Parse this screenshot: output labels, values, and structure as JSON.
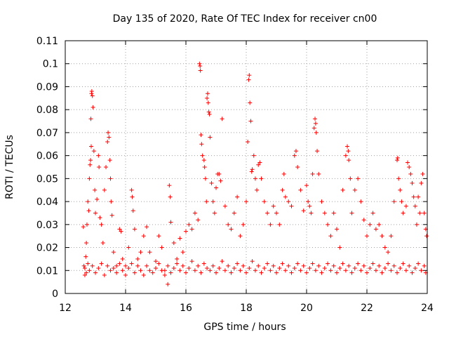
{
  "chart_data": {
    "type": "scatter",
    "title": "Day 135 of 2020, Rate Of TEC Index for receiver cn00",
    "xlabel": "GPS time / hours",
    "ylabel": "ROTI / TECUs",
    "xlim": [
      12,
      24
    ],
    "ylim": [
      0,
      0.11
    ],
    "xticks": [
      "12",
      "14",
      "16",
      "18",
      "20",
      "22",
      "24"
    ],
    "yticks": [
      "0",
      "0.01",
      "0.02",
      "0.03",
      "0.04",
      "0.05",
      "0.06",
      "0.07",
      "0.08",
      "0.09",
      "0.1",
      "0.11"
    ],
    "grid": true,
    "marker": "+",
    "color": "#ff0000",
    "series": [
      {
        "name": "ROTI",
        "points": [
          [
            12.6,
            0.029
          ],
          [
            12.62,
            0.012
          ],
          [
            12.65,
            0.008
          ],
          [
            12.68,
            0.016
          ],
          [
            12.7,
            0.022
          ],
          [
            12.72,
            0.03
          ],
          [
            12.75,
            0.04
          ],
          [
            12.78,
            0.036
          ],
          [
            12.8,
            0.05
          ],
          [
            12.82,
            0.056
          ],
          [
            12.84,
            0.058
          ],
          [
            12.86,
            0.064
          ],
          [
            12.87,
            0.087
          ],
          [
            12.88,
            0.088
          ],
          [
            12.9,
            0.086
          ],
          [
            12.92,
            0.081
          ],
          [
            12.85,
            0.076
          ],
          [
            12.95,
            0.062
          ],
          [
            12.98,
            0.045
          ],
          [
            13.0,
            0.035
          ],
          [
            13.05,
            0.041
          ],
          [
            13.1,
            0.06
          ],
          [
            13.12,
            0.055
          ],
          [
            13.15,
            0.033
          ],
          [
            13.2,
            0.03
          ],
          [
            13.25,
            0.022
          ],
          [
            13.3,
            0.045
          ],
          [
            13.35,
            0.055
          ],
          [
            13.4,
            0.066
          ],
          [
            13.42,
            0.07
          ],
          [
            13.45,
            0.068
          ],
          [
            13.48,
            0.058
          ],
          [
            13.5,
            0.05
          ],
          [
            13.52,
            0.04
          ],
          [
            13.55,
            0.034
          ],
          [
            13.6,
            0.018
          ],
          [
            13.7,
            0.012
          ],
          [
            13.8,
            0.028
          ],
          [
            13.85,
            0.027
          ],
          [
            13.9,
            0.015
          ],
          [
            14.0,
            0.012
          ],
          [
            14.1,
            0.02
          ],
          [
            14.2,
            0.045
          ],
          [
            14.22,
            0.042
          ],
          [
            14.25,
            0.036
          ],
          [
            14.3,
            0.028
          ],
          [
            14.4,
            0.015
          ],
          [
            14.5,
            0.018
          ],
          [
            14.6,
            0.025
          ],
          [
            14.7,
            0.029
          ],
          [
            14.8,
            0.018
          ],
          [
            15.0,
            0.014
          ],
          [
            15.1,
            0.025
          ],
          [
            15.2,
            0.02
          ],
          [
            15.3,
            0.01
          ],
          [
            15.4,
            0.004
          ],
          [
            15.45,
            0.047
          ],
          [
            15.48,
            0.042
          ],
          [
            15.5,
            0.031
          ],
          [
            15.6,
            0.022
          ],
          [
            15.7,
            0.015
          ],
          [
            15.8,
            0.024
          ],
          [
            15.9,
            0.018
          ],
          [
            16.0,
            0.027
          ],
          [
            16.1,
            0.03
          ],
          [
            16.2,
            0.028
          ],
          [
            16.3,
            0.035
          ],
          [
            16.4,
            0.032
          ],
          [
            16.45,
            0.1
          ],
          [
            16.47,
            0.099
          ],
          [
            16.48,
            0.097
          ],
          [
            16.5,
            0.069
          ],
          [
            16.52,
            0.065
          ],
          [
            16.55,
            0.06
          ],
          [
            16.6,
            0.058
          ],
          [
            16.62,
            0.055
          ],
          [
            16.65,
            0.05
          ],
          [
            16.68,
            0.04
          ],
          [
            16.7,
            0.085
          ],
          [
            16.72,
            0.087
          ],
          [
            16.74,
            0.083
          ],
          [
            16.76,
            0.079
          ],
          [
            16.78,
            0.078
          ],
          [
            16.8,
            0.068
          ],
          [
            16.85,
            0.048
          ],
          [
            16.9,
            0.04
          ],
          [
            16.95,
            0.035
          ],
          [
            17.0,
            0.046
          ],
          [
            17.05,
            0.052
          ],
          [
            17.1,
            0.052
          ],
          [
            17.15,
            0.049
          ],
          [
            17.2,
            0.076
          ],
          [
            17.3,
            0.038
          ],
          [
            17.4,
            0.03
          ],
          [
            17.5,
            0.028
          ],
          [
            17.6,
            0.035
          ],
          [
            17.7,
            0.042
          ],
          [
            17.8,
            0.025
          ],
          [
            17.9,
            0.03
          ],
          [
            18.0,
            0.04
          ],
          [
            18.05,
            0.066
          ],
          [
            18.08,
            0.093
          ],
          [
            18.1,
            0.095
          ],
          [
            18.12,
            0.083
          ],
          [
            18.15,
            0.075
          ],
          [
            18.18,
            0.053
          ],
          [
            18.2,
            0.054
          ],
          [
            18.25,
            0.06
          ],
          [
            18.3,
            0.05
          ],
          [
            18.35,
            0.045
          ],
          [
            18.4,
            0.056
          ],
          [
            18.45,
            0.057
          ],
          [
            18.5,
            0.05
          ],
          [
            18.6,
            0.04
          ],
          [
            18.7,
            0.035
          ],
          [
            18.8,
            0.03
          ],
          [
            18.9,
            0.038
          ],
          [
            19.0,
            0.035
          ],
          [
            19.1,
            0.03
          ],
          [
            19.2,
            0.045
          ],
          [
            19.25,
            0.052
          ],
          [
            19.3,
            0.042
          ],
          [
            19.4,
            0.04
          ],
          [
            19.5,
            0.038
          ],
          [
            19.6,
            0.06
          ],
          [
            19.65,
            0.062
          ],
          [
            19.7,
            0.055
          ],
          [
            19.8,
            0.045
          ],
          [
            19.9,
            0.036
          ],
          [
            20.0,
            0.047
          ],
          [
            20.05,
            0.04
          ],
          [
            20.1,
            0.038
          ],
          [
            20.15,
            0.035
          ],
          [
            20.2,
            0.052
          ],
          [
            20.25,
            0.072
          ],
          [
            20.28,
            0.076
          ],
          [
            20.3,
            0.074
          ],
          [
            20.32,
            0.07
          ],
          [
            20.35,
            0.062
          ],
          [
            20.4,
            0.052
          ],
          [
            20.5,
            0.04
          ],
          [
            20.6,
            0.035
          ],
          [
            20.7,
            0.03
          ],
          [
            20.8,
            0.025
          ],
          [
            20.9,
            0.035
          ],
          [
            21.0,
            0.028
          ],
          [
            21.1,
            0.02
          ],
          [
            21.2,
            0.045
          ],
          [
            21.3,
            0.06
          ],
          [
            21.35,
            0.064
          ],
          [
            21.38,
            0.062
          ],
          [
            21.4,
            0.058
          ],
          [
            21.45,
            0.05
          ],
          [
            21.5,
            0.035
          ],
          [
            21.6,
            0.045
          ],
          [
            21.7,
            0.05
          ],
          [
            21.8,
            0.04
          ],
          [
            21.9,
            0.032
          ],
          [
            22.0,
            0.025
          ],
          [
            22.1,
            0.03
          ],
          [
            22.2,
            0.035
          ],
          [
            22.3,
            0.028
          ],
          [
            22.4,
            0.03
          ],
          [
            22.5,
            0.025
          ],
          [
            22.6,
            0.02
          ],
          [
            22.7,
            0.018
          ],
          [
            22.8,
            0.025
          ],
          [
            22.9,
            0.04
          ],
          [
            23.0,
            0.058
          ],
          [
            23.02,
            0.059
          ],
          [
            23.05,
            0.05
          ],
          [
            23.1,
            0.045
          ],
          [
            23.15,
            0.04
          ],
          [
            23.2,
            0.035
          ],
          [
            23.3,
            0.038
          ],
          [
            23.35,
            0.057
          ],
          [
            23.4,
            0.055
          ],
          [
            23.45,
            0.052
          ],
          [
            23.5,
            0.048
          ],
          [
            23.55,
            0.042
          ],
          [
            23.6,
            0.038
          ],
          [
            23.65,
            0.03
          ],
          [
            23.7,
            0.042
          ],
          [
            23.75,
            0.035
          ],
          [
            23.8,
            0.048
          ],
          [
            23.85,
            0.052
          ],
          [
            23.9,
            0.035
          ],
          [
            23.95,
            0.028
          ],
          [
            23.98,
            0.025
          ],
          [
            12.65,
            0.011
          ],
          [
            12.7,
            0.009
          ],
          [
            12.75,
            0.013
          ],
          [
            12.8,
            0.01
          ],
          [
            12.9,
            0.012
          ],
          [
            13.0,
            0.009
          ],
          [
            13.1,
            0.011
          ],
          [
            13.2,
            0.013
          ],
          [
            13.3,
            0.008
          ],
          [
            13.4,
            0.012
          ],
          [
            13.5,
            0.01
          ],
          [
            13.6,
            0.011
          ],
          [
            13.7,
            0.009
          ],
          [
            13.8,
            0.013
          ],
          [
            13.9,
            0.01
          ],
          [
            14.0,
            0.008
          ],
          [
            14.1,
            0.011
          ],
          [
            14.2,
            0.013
          ],
          [
            14.3,
            0.009
          ],
          [
            14.4,
            0.012
          ],
          [
            14.5,
            0.01
          ],
          [
            14.6,
            0.008
          ],
          [
            14.7,
            0.012
          ],
          [
            14.8,
            0.01
          ],
          [
            14.9,
            0.009
          ],
          [
            15.0,
            0.011
          ],
          [
            15.1,
            0.013
          ],
          [
            15.2,
            0.01
          ],
          [
            15.3,
            0.008
          ],
          [
            15.4,
            0.012
          ],
          [
            15.5,
            0.009
          ],
          [
            15.6,
            0.011
          ],
          [
            15.7,
            0.013
          ],
          [
            15.8,
            0.01
          ],
          [
            15.9,
            0.012
          ],
          [
            16.0,
            0.009
          ],
          [
            16.1,
            0.011
          ],
          [
            16.2,
            0.014
          ],
          [
            16.3,
            0.01
          ],
          [
            16.4,
            0.012
          ],
          [
            16.5,
            0.009
          ],
          [
            16.6,
            0.013
          ],
          [
            16.7,
            0.011
          ],
          [
            16.8,
            0.01
          ],
          [
            16.9,
            0.012
          ],
          [
            17.0,
            0.009
          ],
          [
            17.1,
            0.011
          ],
          [
            17.2,
            0.014
          ],
          [
            17.3,
            0.01
          ],
          [
            17.4,
            0.012
          ],
          [
            17.5,
            0.009
          ],
          [
            17.6,
            0.011
          ],
          [
            17.7,
            0.013
          ],
          [
            17.8,
            0.01
          ],
          [
            17.9,
            0.012
          ],
          [
            18.0,
            0.009
          ],
          [
            18.1,
            0.011
          ],
          [
            18.2,
            0.014
          ],
          [
            18.3,
            0.01
          ],
          [
            18.4,
            0.012
          ],
          [
            18.5,
            0.009
          ],
          [
            18.6,
            0.011
          ],
          [
            18.7,
            0.013
          ],
          [
            18.8,
            0.01
          ],
          [
            18.9,
            0.012
          ],
          [
            19.0,
            0.009
          ],
          [
            19.1,
            0.011
          ],
          [
            19.2,
            0.013
          ],
          [
            19.3,
            0.01
          ],
          [
            19.4,
            0.012
          ],
          [
            19.5,
            0.009
          ],
          [
            19.6,
            0.011
          ],
          [
            19.7,
            0.013
          ],
          [
            19.8,
            0.01
          ],
          [
            19.9,
            0.012
          ],
          [
            20.0,
            0.009
          ],
          [
            20.1,
            0.011
          ],
          [
            20.2,
            0.013
          ],
          [
            20.3,
            0.01
          ],
          [
            20.4,
            0.012
          ],
          [
            20.5,
            0.009
          ],
          [
            20.6,
            0.011
          ],
          [
            20.7,
            0.013
          ],
          [
            20.8,
            0.01
          ],
          [
            20.9,
            0.012
          ],
          [
            21.0,
            0.009
          ],
          [
            21.1,
            0.011
          ],
          [
            21.2,
            0.013
          ],
          [
            21.3,
            0.01
          ],
          [
            21.4,
            0.012
          ],
          [
            21.5,
            0.009
          ],
          [
            21.6,
            0.011
          ],
          [
            21.7,
            0.013
          ],
          [
            21.8,
            0.01
          ],
          [
            21.9,
            0.012
          ],
          [
            22.0,
            0.009
          ],
          [
            22.1,
            0.011
          ],
          [
            22.2,
            0.013
          ],
          [
            22.3,
            0.01
          ],
          [
            22.4,
            0.012
          ],
          [
            22.5,
            0.009
          ],
          [
            22.6,
            0.011
          ],
          [
            22.7,
            0.013
          ],
          [
            22.8,
            0.01
          ],
          [
            22.9,
            0.012
          ],
          [
            23.0,
            0.009
          ],
          [
            23.1,
            0.011
          ],
          [
            23.2,
            0.013
          ],
          [
            23.3,
            0.01
          ],
          [
            23.4,
            0.012
          ],
          [
            23.5,
            0.009
          ],
          [
            23.6,
            0.011
          ],
          [
            23.7,
            0.013
          ],
          [
            23.8,
            0.01
          ],
          [
            23.9,
            0.012
          ],
          [
            23.95,
            0.009
          ]
        ]
      }
    ]
  }
}
